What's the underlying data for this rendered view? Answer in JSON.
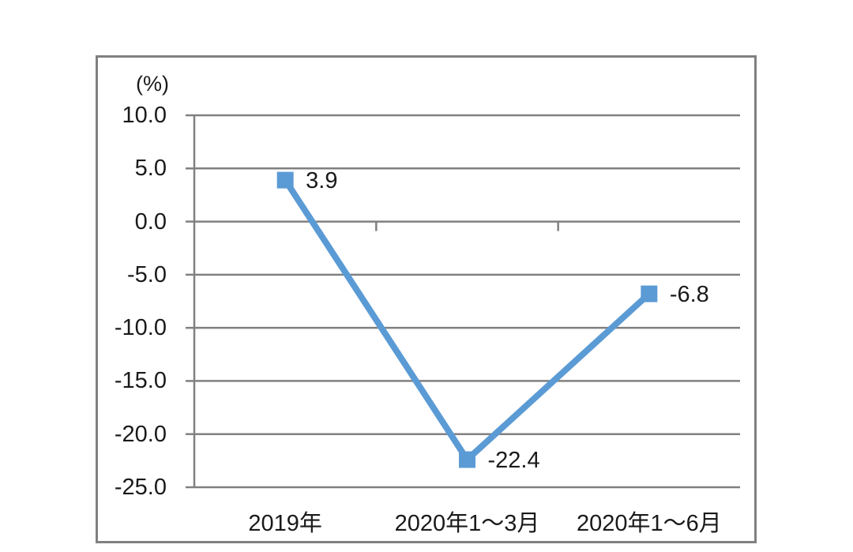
{
  "chart_data": {
    "type": "line",
    "title": "",
    "unit_label": "(%)",
    "categories": [
      "2019年",
      "2020年1～3月",
      "2020年1～6月"
    ],
    "values": [
      3.9,
      -22.4,
      -6.8
    ],
    "data_labels": [
      "3.9",
      "-22.4",
      "-6.8"
    ],
    "ytick_values": [
      10,
      5,
      0,
      -5,
      -10,
      -15,
      -20,
      -25
    ],
    "ytick_labels": [
      "10.0",
      "5.0",
      "0.0",
      "-5.0",
      "-10.0",
      "-15.0",
      "-20.0",
      "-25.0"
    ],
    "ylim": [
      -25,
      10
    ],
    "xlabel": "",
    "ylabel": "(%)",
    "grid": "horizontal",
    "legend": "none",
    "line_color": "#5B9BD5",
    "marker_shape": "square",
    "axis_color": "#808080",
    "text_color": "#1a1a1a",
    "background_color": "#ffffff"
  }
}
